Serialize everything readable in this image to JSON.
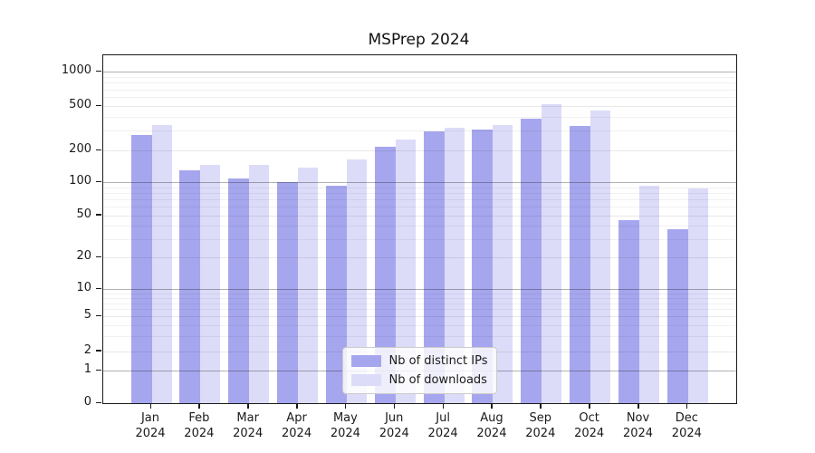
{
  "title": "MSPrep 2024",
  "chart_data": {
    "type": "bar",
    "title": "MSPrep 2024",
    "x_categories": [
      "Jan",
      "Feb",
      "Mar",
      "Apr",
      "May",
      "Jun",
      "Jul",
      "Aug",
      "Sep",
      "Oct",
      "Nov",
      "Dec"
    ],
    "x_year_label": "2024",
    "series": [
      {
        "name": "Nb of distinct IPs",
        "color": "#a6a6ee",
        "values": [
          275,
          130,
          108,
          100,
          92,
          215,
          295,
          305,
          385,
          330,
          45,
          37
        ]
      },
      {
        "name": "Nb of downloads",
        "color": "#dcdcf9",
        "values": [
          340,
          147,
          145,
          137,
          165,
          252,
          318,
          338,
          520,
          455,
          92,
          88
        ]
      }
    ],
    "y_ticks": [
      0,
      1,
      2,
      5,
      10,
      20,
      50,
      100,
      200,
      500,
      1000
    ],
    "y_scale": "log-like with linear segment near zero",
    "ylim": [
      0,
      1400
    ],
    "grid": true,
    "major_grid_values": [
      1,
      10,
      100,
      1000
    ],
    "legend_position": "lower center",
    "legend_items": [
      "Nb of distinct IPs",
      "Nb of downloads"
    ]
  }
}
